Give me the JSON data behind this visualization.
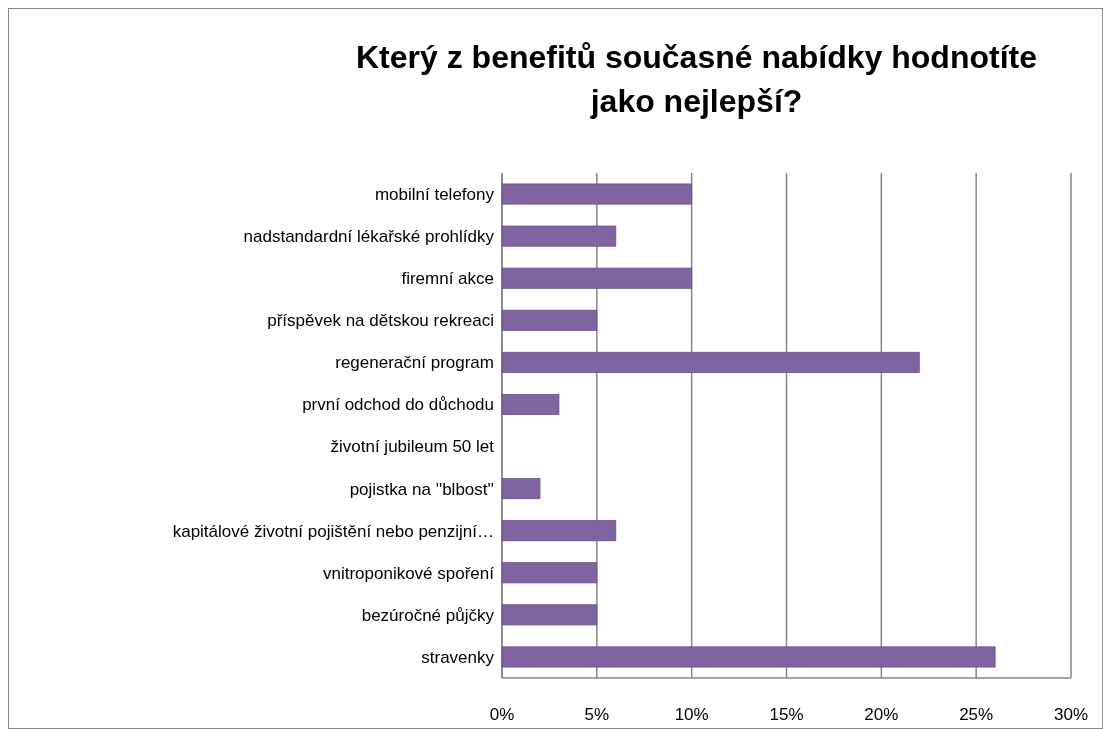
{
  "chart_data": {
    "type": "bar",
    "orientation": "horizontal",
    "title": "Který z benefitů současné nabídky hodnotíte jako nejlepší?",
    "categories": [
      "mobilní telefony",
      "nadstandardní lékařské prohlídky",
      "firemní akce",
      "příspěvek na dětskou rekreaci",
      "regenerační program",
      "první odchod do důchodu",
      "životní jubileum 50 let",
      "pojistka na ''blbost''",
      "kapitálové životní pojištění nebo penzijní…",
      "vnitroponikové spoření",
      "bezúročné půjčky",
      "stravenky"
    ],
    "values": [
      10,
      6,
      10,
      5,
      22,
      3,
      0,
      2,
      6,
      5,
      5,
      26
    ],
    "color": "#8064a2",
    "xlim": [
      0,
      30
    ],
    "xticks": [
      {
        "value": 0,
        "label": "0%"
      },
      {
        "value": 5,
        "label": "5%"
      },
      {
        "value": 10,
        "label": "10%"
      },
      {
        "value": 15,
        "label": "15%"
      },
      {
        "value": 20,
        "label": "20%"
      },
      {
        "value": 25,
        "label": "25%"
      },
      {
        "value": 30,
        "label": "30%"
      }
    ],
    "grid": "x"
  }
}
